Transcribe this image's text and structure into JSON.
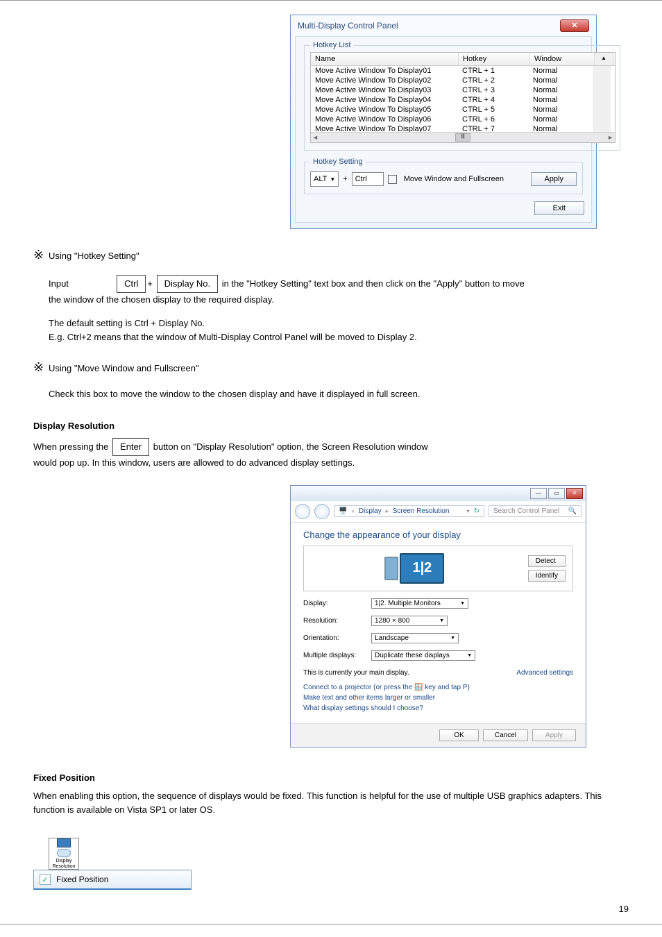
{
  "page_number": "19",
  "star_glyph": "※",
  "dialog1": {
    "title": "Multi-Display Control Panel",
    "list_legend": "Hotkey List",
    "setting_legend": "Hotkey Setting",
    "col_name": "Name",
    "col_hotkey": "Hotkey",
    "col_window": "Window",
    "rows": [
      {
        "name": "Move Active Window To Display01",
        "hk": "CTRL + 1",
        "win": "Normal"
      },
      {
        "name": "Move Active Window To Display02",
        "hk": "CTRL + 2",
        "win": "Normal"
      },
      {
        "name": "Move Active Window To Display03",
        "hk": "CTRL + 3",
        "win": "Normal"
      },
      {
        "name": "Move Active Window To Display04",
        "hk": "CTRL + 4",
        "win": "Normal"
      },
      {
        "name": "Move Active Window To Display05",
        "hk": "CTRL + 5",
        "win": "Normal"
      },
      {
        "name": "Move Active Window To Display06",
        "hk": "CTRL + 6",
        "win": "Normal"
      },
      {
        "name": "Move Active Window To Display07",
        "hk": "CTRL + 7",
        "win": "Normal"
      }
    ],
    "alt": "ALT",
    "plus": "+",
    "ctrl": "Ctrl",
    "move_full": "Move Window and Fullscreen",
    "apply": "Apply",
    "exit": "Exit"
  },
  "text": {
    "using_heading": "Using \"Hotkey Setting\"",
    "using_line": "Input",
    "using_box1": "Ctrl",
    "using_box2": "Display No.",
    "using_after": " in the \"Hotkey Setting\" text box and then click on the \"Apply\" button to move",
    "using_line2": "the window of the chosen display to the required display.",
    "default_line1": "The default setting is Ctrl + Display No.",
    "default_eg": "E.g. Ctrl+2 means that the window of Multi-Display Control Panel will be moved to Display 2.",
    "using_move": "Using \"Move Window and Fullscreen\"",
    "using_move_desc": "Check this box to move the window to the chosen display and have it displayed in full screen.",
    "fixed_heading": "Display Resolution",
    "fixed_para1": "When pressing the",
    "fixed_box": "Enter",
    "fixed_after": "button on \"Display Resolution\" option, the Screen Resolution window",
    "fixed_line2": "would pop up. In this window, users are allowed to do advanced display settings."
  },
  "sr": {
    "crumb1": "Display",
    "crumb2": "Screen Resolution",
    "search_ph": "Search Control Panel",
    "heading": "Change the appearance of your display",
    "detect": "Detect",
    "identify": "Identify",
    "display_lbl": "Display:",
    "display_val": "1|2. Multiple Monitors",
    "res_lbl": "Resolution:",
    "res_val": "1280 × 800",
    "orient_lbl": "Orientation:",
    "orient_val": "Landscape",
    "multi_lbl": "Multiple displays:",
    "multi_val": "Duplicate these displays",
    "main_note": "This is currently your main display.",
    "adv": "Advanced settings",
    "proj": "Connect to a projector (or press the 🪟 key and tap P)",
    "larger": "Make text and other items larger or smaller",
    "which": "What display settings should I choose?",
    "ok": "OK",
    "cancel": "Cancel",
    "apply": "Apply"
  },
  "fixed_pos": {
    "heading": "Fixed Position",
    "para": "When enabling this option, the sequence of displays would be fixed. This function is helpful for the use of multiple USB graphics adapters. This function is available on Vista SP1 or later OS.",
    "icon_line1": "Display",
    "icon_line2": "Resolution",
    "menu_label": "Fixed Position",
    "check": "✓"
  }
}
